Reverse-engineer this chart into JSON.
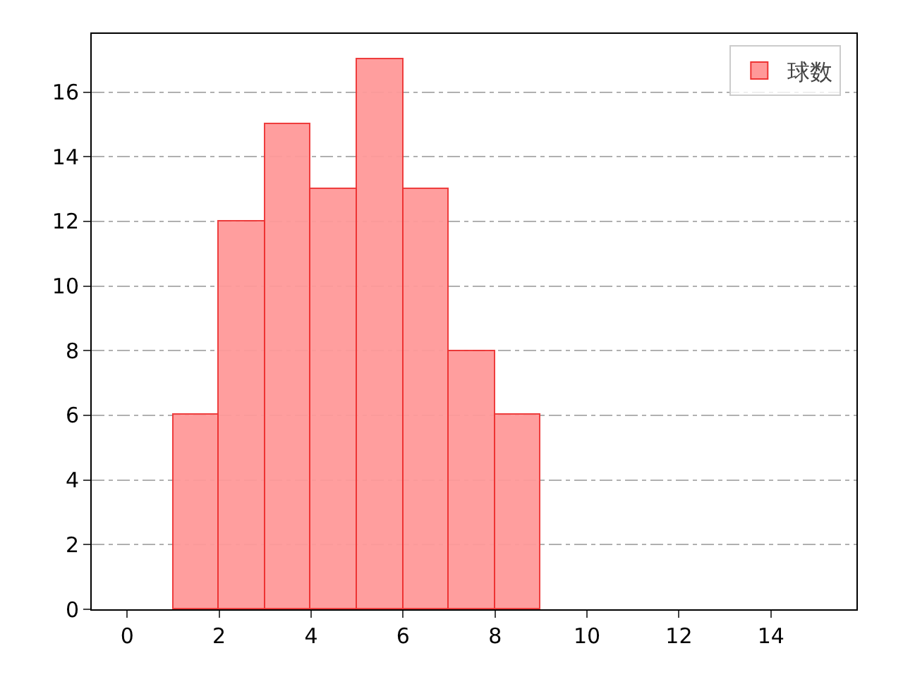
{
  "chart_data": {
    "type": "histogram",
    "bins": [
      1,
      2,
      3,
      4,
      5,
      6,
      7,
      8,
      9
    ],
    "series": [
      {
        "name": "球数",
        "color": "#ff9999",
        "values": [
          6,
          12,
          15,
          13,
          17,
          13,
          8,
          6
        ]
      }
    ],
    "xlim": [
      -0.77,
      15.86
    ],
    "xticks": [
      0,
      2,
      4,
      6,
      8,
      10,
      12,
      14
    ],
    "ylim": [
      0,
      17.8
    ],
    "yticks": [
      0,
      2,
      4,
      6,
      8,
      10,
      12,
      14,
      16
    ],
    "grid": "y",
    "legend": "top right"
  }
}
